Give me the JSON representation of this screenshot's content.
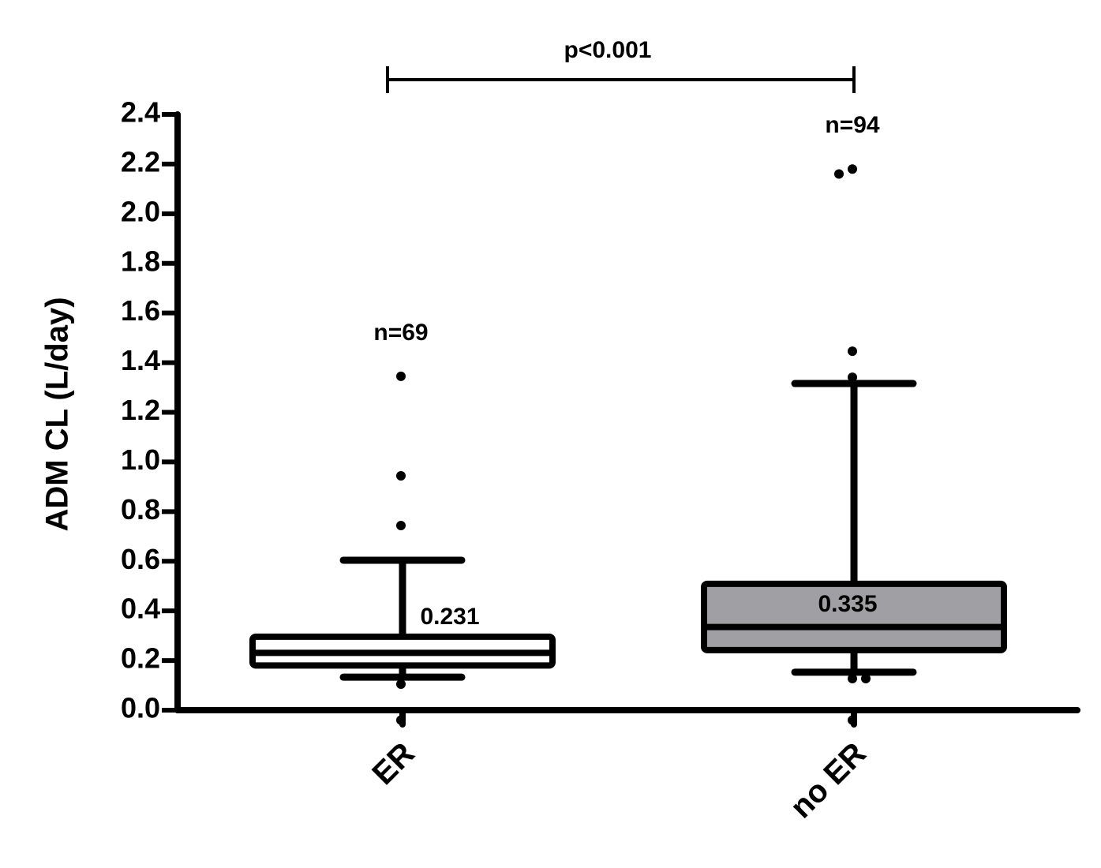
{
  "chart_data": {
    "type": "box",
    "ylabel": "ADM CL (L/day)",
    "categories": [
      "ER",
      "no ER"
    ],
    "ylim": [
      0,
      2.4
    ],
    "yticks": [
      {
        "value": 0,
        "label": "0.0"
      },
      0.2,
      0.4,
      0.6,
      0.8,
      {
        "value": 1,
        "label": "1.0"
      },
      1.2,
      1.4,
      1.6,
      1.8,
      {
        "value": 2,
        "label": "2.0"
      },
      2.2,
      2.4
    ],
    "boxes": [
      {
        "q1": 0.18,
        "median": 0.231,
        "median_label": "0.231",
        "q3": 0.296,
        "whislo": 0.133,
        "whishi": 0.604,
        "fliers": [
          1.345,
          0.944,
          0.744,
          0.105,
          -0.04
        ],
        "color": "#ffffff"
      },
      {
        "q1": 0.242,
        "median": 0.335,
        "median_label": "0.335",
        "q3": 0.509,
        "whislo": 0.153,
        "whishi": 1.316,
        "fliers": [
          2.18,
          2.16,
          1.446,
          1.341,
          0.127,
          0.127,
          -0.04
        ],
        "color": "#a0a0a4"
      }
    ],
    "n_labels": [
      "n=69",
      "n=94"
    ],
    "significance": "p<0.001"
  }
}
